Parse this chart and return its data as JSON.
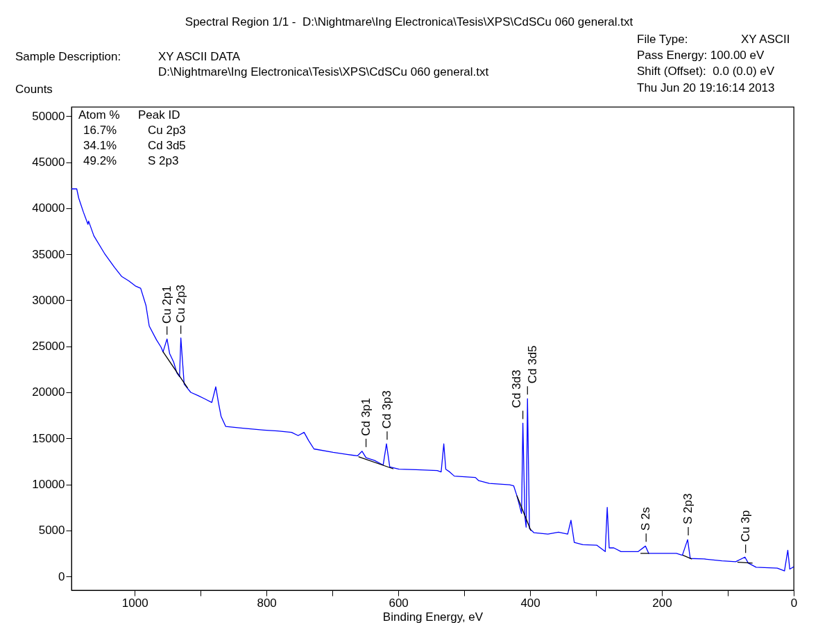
{
  "chart_data": {
    "type": "line",
    "title": "Spectral Region 1/1 -  D:\\Nightmare\\Ing Electronica\\Tesis\\XPS\\CdSCu 060 general.txt",
    "xlabel": "Binding Energy, eV",
    "ylabel": "Counts",
    "xlim": [
      1096,
      0
    ],
    "ylim": [
      -1500,
      51000
    ],
    "xticks": [
      0,
      {
        "value": 100,
        "label": null
      },
      200,
      {
        "value": 300,
        "label": null
      },
      400,
      {
        "value": 500,
        "label": null
      },
      600,
      {
        "value": 700,
        "label": null
      },
      800,
      {
        "value": 900,
        "label": null
      },
      1000
    ],
    "yticks": [
      0,
      5000,
      10000,
      15000,
      20000,
      25000,
      30000,
      35000,
      40000,
      45000,
      50000
    ],
    "series": [
      {
        "color": "#0000ff",
        "x": [
          1096,
          1088,
          1085,
          1078,
          1071,
          1070,
          1062,
          1046,
          1031,
          1020,
          1009,
          999,
          991,
          983,
          978,
          967,
          960,
          957,
          951,
          947,
          941,
          936,
          932,
          930,
          927,
          925,
          915,
          904,
          894,
          883,
          877,
          873,
          869,
          862,
          836,
          804,
          783,
          762,
          752,
          743,
          736,
          728,
          699,
          678,
          662,
          655,
          649,
          636,
          623,
          618,
          613,
          599,
          573,
          541,
          535,
          531,
          528,
          522,
          515,
          483,
          478,
          462,
          431,
          425,
          420,
          413,
          411,
          408,
          406,
          404,
          401,
          394,
          373,
          357,
          343,
          338,
          333,
          320,
          299,
          286,
          283,
          280,
          273,
          262,
          236,
          225,
          220,
          204,
          178,
          169,
          161,
          157,
          136,
          109,
          88,
          74,
          69,
          57,
          25,
          14,
          9,
          6,
          0
        ],
        "values": [
          42100,
          42100,
          41100,
          39600,
          38250,
          38600,
          37000,
          35100,
          33600,
          32600,
          32100,
          31550,
          31300,
          29450,
          27200,
          25700,
          24900,
          24400,
          25800,
          24200,
          23300,
          22100,
          21700,
          25900,
          22900,
          20900,
          20000,
          19650,
          19300,
          18900,
          20600,
          18900,
          17400,
          16300,
          16100,
          15900,
          15800,
          15650,
          15300,
          15650,
          14750,
          13850,
          13480,
          13250,
          13100,
          13600,
          12900,
          12600,
          12100,
          14400,
          11900,
          11650,
          11600,
          11500,
          11350,
          14400,
          11650,
          11350,
          10900,
          10750,
          10400,
          10100,
          9950,
          9850,
          8750,
          6850,
          16650,
          6500,
          5350,
          19300,
          5200,
          4750,
          4600,
          4800,
          4600,
          6100,
          3700,
          3450,
          3400,
          2700,
          7500,
          3100,
          3100,
          2700,
          2700,
          3300,
          2500,
          2500,
          2500,
          2300,
          4000,
          1950,
          1900,
          1700,
          1600,
          2100,
          1450,
          1000,
          900,
          600,
          2850,
          800,
          1050
        ]
      },
      {
        "color": "#000000",
        "x": [
          957,
          920
        ],
        "values": [
          24400,
          20500
        ]
      },
      {
        "color": "#000000",
        "x": [
          660,
          608
        ],
        "values": [
          13000,
          11700
        ]
      },
      {
        "color": "#000000",
        "x": [
          420,
          399
        ],
        "values": [
          8750,
          5000
        ]
      },
      {
        "color": "#000000",
        "x": [
          232,
          220
        ],
        "values": [
          2500,
          2500
        ]
      },
      {
        "color": "#000000",
        "x": [
          168,
          155
        ],
        "values": [
          2300,
          1900
        ]
      },
      {
        "color": "#000000",
        "x": [
          85,
          63
        ],
        "values": [
          1550,
          1450
        ]
      }
    ],
    "annotations": [
      "Sample Description:",
      "XY ASCII DATA",
      "D:\\Nightmare\\Ing Electronica\\Tesis\\XPS\\CdSCu 060 general.txt",
      "File Type:",
      "XY ASCII",
      "Pass Energy: 100.00 eV",
      "Shift (Offset):  0.0 (0.0) eV",
      "Thu Jun 20 19:16:14 2013",
      "Atom %",
      "Peak ID",
      "16.7%",
      "Cu 2p3",
      "34.1%",
      "Cd 3d5",
      "49.2%",
      "S 2p3",
      {
        "text": "Cu 2p1",
        "x": 951,
        "y": 25800
      },
      {
        "text": "Cu 2p3",
        "x": 930,
        "y": 25900
      },
      {
        "text": "Cd 3p1",
        "x": 649,
        "y": 13600
      },
      {
        "text": "Cd 3p3",
        "x": 617,
        "y": 14400
      },
      {
        "text": "Cd 3d3",
        "x": 411,
        "y": 16650
      },
      {
        "text": "Cd 3d5",
        "x": 404,
        "y": 19300
      },
      {
        "text": "S 2s",
        "x": 224,
        "y": 3300
      },
      {
        "text": "S 2p3",
        "x": 160,
        "y": 4000
      },
      {
        "text": "Cu 3p",
        "x": 73,
        "y": 2100
      }
    ]
  }
}
